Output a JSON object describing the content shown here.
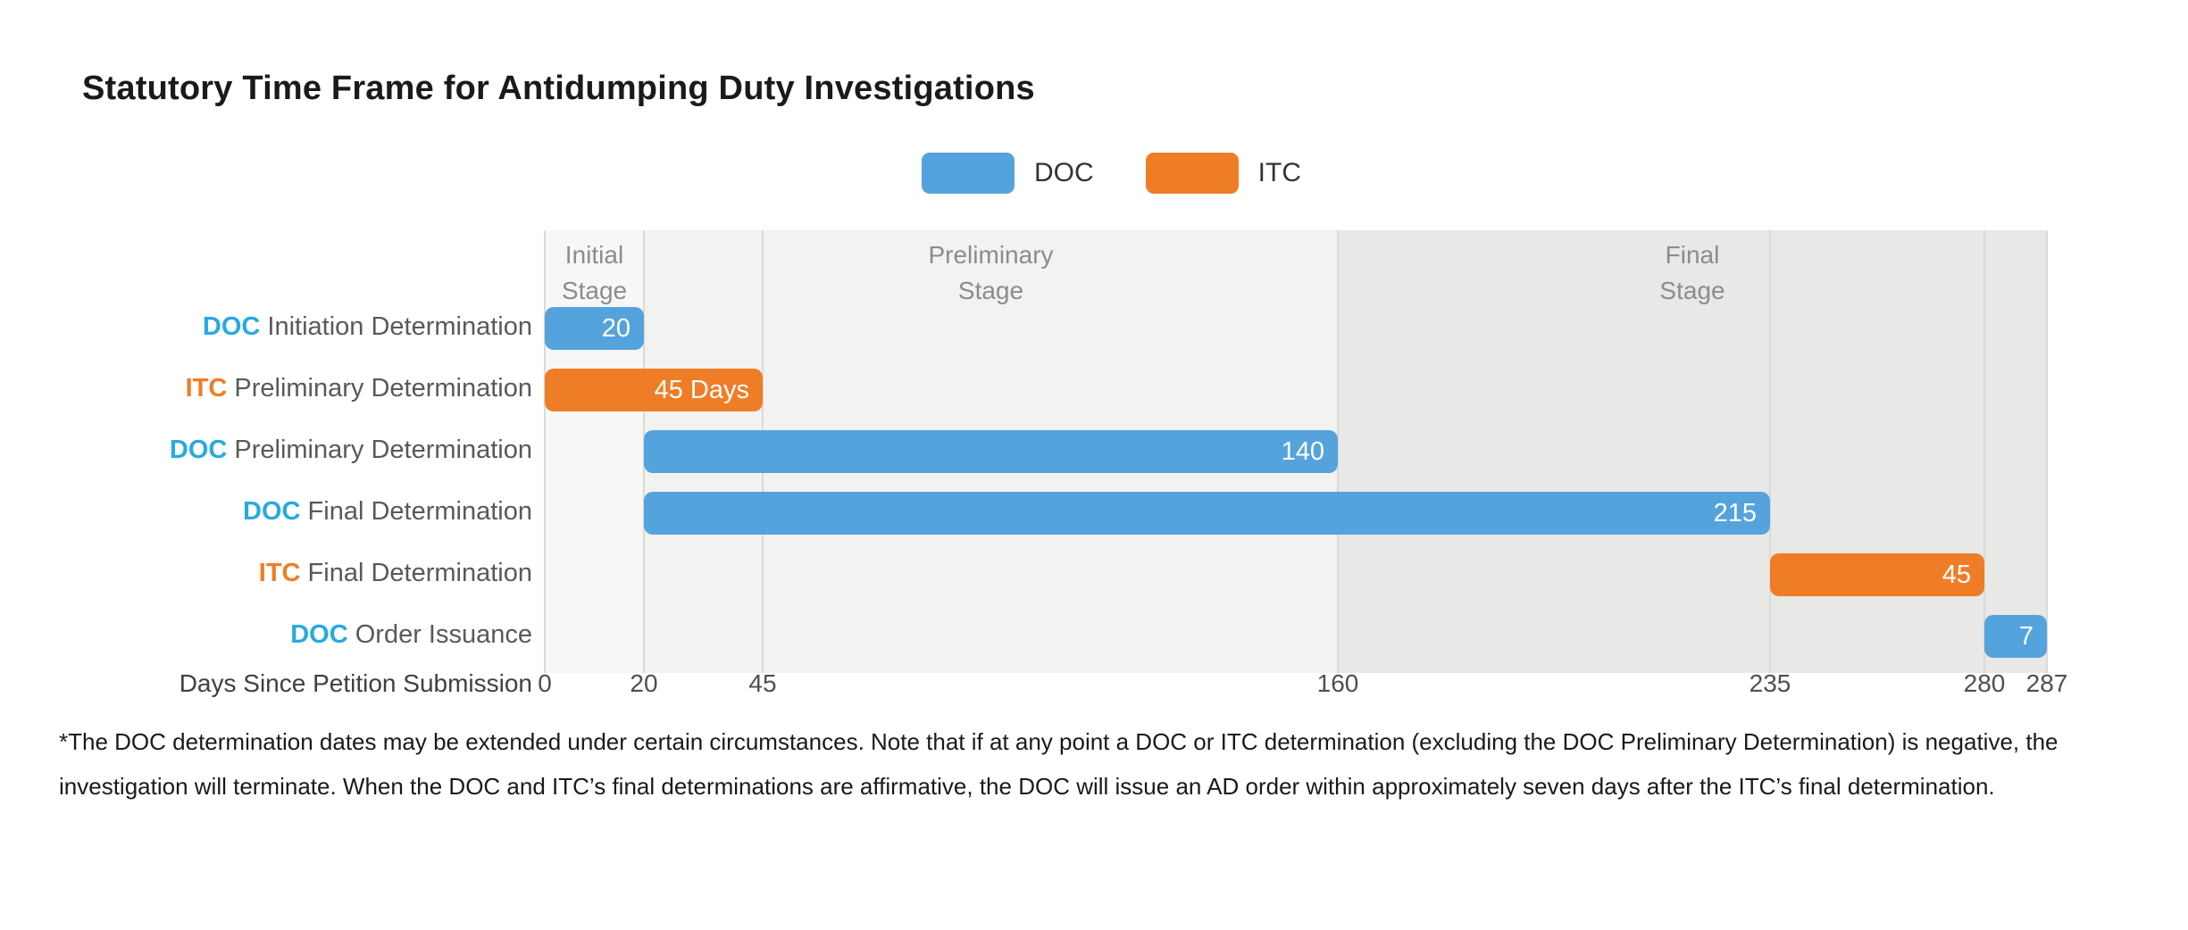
{
  "title": "Statutory Time Frame for Antidumping Duty Investigations",
  "colors": {
    "doc_bar": "#55a3dc",
    "itc_bar": "#ef7d27",
    "doc_text": "#29a9e1",
    "itc_text": "#f07d26",
    "stage_label": "#8c8c8c",
    "gridline": "#d9d9d9"
  },
  "legend": {
    "items": [
      {
        "label": "DOC",
        "color": "#55a3dc"
      },
      {
        "label": "ITC",
        "color": "#ef7d27"
      }
    ]
  },
  "chart_data": {
    "type": "bar",
    "subtype": "gantt-timeline",
    "title": "Statutory Time Frame for Antidumping Duty Investigations",
    "xlabel": "Days Since Petition Submission",
    "xlim": [
      0,
      287
    ],
    "x_ticks": [
      "0",
      "20",
      "45",
      "160",
      "235",
      "280",
      "287"
    ],
    "x_tick_values": [
      0,
      20,
      45,
      160,
      235,
      280,
      287
    ],
    "grid": "vertical ticks only",
    "legend_position": "top center",
    "stages": [
      {
        "label": "Initial Stage",
        "start": 0,
        "end": 20,
        "band_color": "#f7f7f6"
      },
      {
        "label": "Preliminary Stage",
        "start": 20,
        "end": 160,
        "band_color": "#f2f2f0"
      },
      {
        "label": "Final Stage",
        "start": 160,
        "end": 287,
        "band_color": "#e8e8e6"
      }
    ],
    "rows": [
      {
        "agency": "DOC",
        "label": " Initiation Determination",
        "series": "DOC",
        "start": 0,
        "end": 20,
        "duration_days": 20,
        "duration_label": "20"
      },
      {
        "agency": "ITC",
        "label": " Preliminary Determination",
        "series": "ITC",
        "start": 0,
        "end": 45,
        "duration_days": 45,
        "duration_label": "45 Days"
      },
      {
        "agency": "DOC",
        "label": " Preliminary Determination",
        "series": "DOC",
        "start": 20,
        "end": 160,
        "duration_days": 140,
        "duration_label": "140"
      },
      {
        "agency": "DOC",
        "label": " Final Determination",
        "series": "DOC",
        "start": 20,
        "end": 235,
        "duration_days": 215,
        "duration_label": "215"
      },
      {
        "agency": "ITC",
        "label": " Final Determination",
        "series": "ITC",
        "start": 235,
        "end": 280,
        "duration_days": 45,
        "duration_label": "45"
      },
      {
        "agency": "DOC",
        "label": " Order Issuance",
        "series": "DOC",
        "start": 280,
        "end": 287,
        "duration_days": 7,
        "duration_label": "7"
      }
    ]
  },
  "footnote": "*The DOC determination dates may be extended under certain circumstances. Note that if at any point a DOC or ITC determination (excluding the DOC Preliminary Determination) is negative, the investigation will terminate. When the DOC and ITC’s final determinations are affirmative, the DOC will issue an AD order within approximately seven days after the ITC’s final determination."
}
